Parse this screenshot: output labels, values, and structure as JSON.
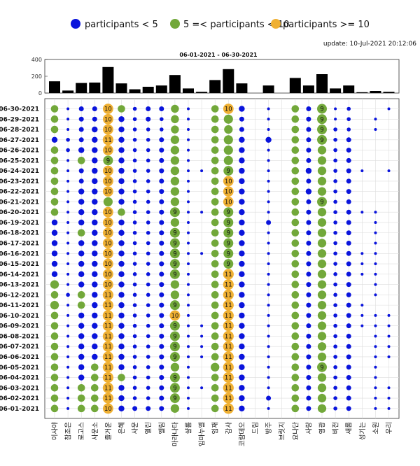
{
  "colors": {
    "blue": "#0a14dc",
    "green": "#72a83a",
    "orange": "#efb033",
    "bar": "#000000",
    "grid": "#dddddd"
  },
  "legend": {
    "small_label": "participants < 5",
    "mid_label": "5 =< participants < 10",
    "large_label": "participants >= 10"
  },
  "update_text": "update: 10-Jul-2021 20:12:06",
  "chart_data": {
    "type": "bubble-matrix-with-bar",
    "title": "06-01-2021   - 06-30-2021",
    "bar_ylim": [
      0,
      400
    ],
    "bar_yticks": [
      "0",
      "200",
      "400"
    ],
    "channels": [
      "이사야",
      "참조은",
      "로고스",
      "사운소",
      "즐거운",
      "은혜",
      "사운",
      "열린",
      "엘림",
      "마라나타",
      "샬롬",
      "임마누엘",
      "임재",
      "감사",
      "코람데오",
      "드림",
      "방주",
      "브릿지",
      "요나단",
      "사랑",
      "영광",
      "비전",
      "새롬",
      "성기는",
      "소원",
      "우리"
    ],
    "bar_values": [
      140,
      30,
      120,
      125,
      310,
      115,
      45,
      75,
      90,
      215,
      55,
      15,
      155,
      285,
      115,
      0,
      90,
      0,
      180,
      90,
      225,
      55,
      90,
      10,
      25,
      15
    ],
    "dates": [
      "06-30-2021",
      "06-29-2021",
      "06-28-2021",
      "06-27-2021",
      "06-26-2021",
      "06-25-2021",
      "06-24-2021",
      "06-23-2021",
      "06-22-2021",
      "06-21-2021",
      "06-20-2021",
      "06-19-2021",
      "06-18-2021",
      "06-17-2021",
      "06-16-2021",
      "06-15-2021",
      "06-14-2021",
      "06-13-2021",
      "06-12-2021",
      "06-11-2021",
      "06-10-2021",
      "06-09-2021",
      "06-08-2021",
      "06-07-2021",
      "06-06-2021",
      "06-05-2021",
      "06-04-2021",
      "06-03-2021",
      "06-02-2021",
      "06-01-2021"
    ],
    "values": [
      [
        5,
        1,
        3,
        3,
        10,
        5,
        2,
        3,
        3,
        6,
        1,
        0,
        5,
        10,
        4,
        0,
        1,
        0,
        5,
        3,
        9,
        1,
        2,
        0,
        0,
        1
      ],
      [
        5,
        1,
        3,
        3,
        10,
        4,
        2,
        3,
        2,
        6,
        1,
        0,
        5,
        8,
        3,
        0,
        1,
        0,
        5,
        3,
        9,
        1,
        2,
        0,
        1,
        0
      ],
      [
        5,
        1,
        3,
        4,
        10,
        4,
        2,
        2,
        2,
        6,
        1,
        0,
        5,
        7,
        3,
        0,
        1,
        0,
        5,
        3,
        9,
        2,
        2,
        0,
        1,
        0
      ],
      [
        4,
        2,
        3,
        4,
        11,
        4,
        2,
        2,
        3,
        7,
        1,
        0,
        5,
        8,
        4,
        0,
        4,
        0,
        5,
        3,
        9,
        2,
        3,
        0,
        0,
        0
      ],
      [
        5,
        2,
        4,
        4,
        10,
        4,
        2,
        2,
        3,
        7,
        1,
        0,
        5,
        8,
        4,
        0,
        1,
        0,
        5,
        3,
        7,
        2,
        3,
        0,
        0,
        0
      ],
      [
        5,
        1,
        5,
        4,
        9,
        4,
        2,
        2,
        3,
        7,
        1,
        0,
        5,
        8,
        4,
        0,
        1,
        0,
        5,
        3,
        7,
        2,
        3,
        0,
        0,
        0
      ],
      [
        5,
        1,
        3,
        4,
        10,
        4,
        2,
        2,
        3,
        7,
        1,
        1,
        5,
        9,
        4,
        0,
        1,
        0,
        5,
        4,
        7,
        2,
        3,
        1,
        0,
        1
      ],
      [
        5,
        1,
        3,
        4,
        10,
        4,
        2,
        2,
        3,
        7,
        1,
        0,
        5,
        10,
        4,
        0,
        1,
        0,
        5,
        3,
        7,
        2,
        3,
        0,
        0,
        0
      ],
      [
        5,
        1,
        4,
        4,
        10,
        4,
        2,
        2,
        3,
        7,
        1,
        0,
        5,
        10,
        4,
        0,
        1,
        0,
        5,
        4,
        7,
        2,
        3,
        0,
        0,
        0
      ],
      [
        5,
        1,
        4,
        4,
        8,
        4,
        2,
        2,
        3,
        7,
        1,
        0,
        5,
        10,
        4,
        0,
        1,
        0,
        5,
        3,
        9,
        2,
        3,
        0,
        0,
        0
      ],
      [
        5,
        1,
        4,
        4,
        10,
        5,
        2,
        2,
        3,
        9,
        1,
        1,
        5,
        9,
        4,
        0,
        1,
        0,
        5,
        3,
        7,
        2,
        3,
        1,
        1,
        0
      ],
      [
        4,
        1,
        4,
        4,
        10,
        4,
        2,
        2,
        3,
        7,
        1,
        0,
        5,
        9,
        4,
        0,
        3,
        0,
        5,
        3,
        7,
        2,
        3,
        0,
        1,
        0
      ],
      [
        4,
        1,
        5,
        4,
        10,
        4,
        2,
        2,
        3,
        9,
        1,
        0,
        5,
        9,
        4,
        0,
        1,
        0,
        5,
        3,
        7,
        2,
        3,
        0,
        1,
        0
      ],
      [
        4,
        1,
        4,
        4,
        10,
        4,
        2,
        2,
        3,
        9,
        1,
        0,
        5,
        9,
        4,
        0,
        1,
        0,
        5,
        3,
        7,
        2,
        3,
        0,
        1,
        0
      ],
      [
        4,
        1,
        4,
        4,
        10,
        4,
        2,
        2,
        3,
        9,
        1,
        1,
        5,
        9,
        4,
        0,
        1,
        0,
        5,
        3,
        7,
        2,
        3,
        1,
        1,
        0
      ],
      [
        4,
        1,
        4,
        4,
        10,
        4,
        2,
        2,
        3,
        9,
        1,
        0,
        5,
        9,
        4,
        0,
        1,
        0,
        5,
        3,
        7,
        2,
        3,
        1,
        1,
        0
      ],
      [
        4,
        1,
        4,
        4,
        10,
        4,
        2,
        2,
        3,
        9,
        1,
        0,
        5,
        11,
        4,
        0,
        1,
        0,
        5,
        3,
        7,
        2,
        3,
        1,
        1,
        0
      ],
      [
        7,
        1,
        4,
        4,
        10,
        4,
        2,
        2,
        3,
        7,
        1,
        0,
        5,
        11,
        4,
        0,
        1,
        0,
        5,
        3,
        7,
        2,
        3,
        0,
        1,
        0
      ],
      [
        5,
        2,
        5,
        4,
        11,
        4,
        2,
        2,
        3,
        7,
        1,
        0,
        5,
        11,
        4,
        0,
        1,
        0,
        5,
        3,
        7,
        2,
        3,
        0,
        1,
        0
      ],
      [
        7,
        1,
        5,
        4,
        11,
        4,
        2,
        2,
        3,
        9,
        1,
        0,
        5,
        11,
        4,
        0,
        1,
        0,
        5,
        3,
        7,
        2,
        3,
        1,
        0,
        0
      ],
      [
        5,
        1,
        4,
        4,
        11,
        4,
        2,
        2,
        3,
        10,
        1,
        0,
        5,
        11,
        4,
        0,
        1,
        0,
        5,
        3,
        7,
        2,
        3,
        1,
        1,
        1
      ],
      [
        5,
        1,
        4,
        4,
        11,
        4,
        2,
        2,
        3,
        9,
        1,
        1,
        5,
        11,
        4,
        0,
        1,
        0,
        5,
        3,
        7,
        2,
        3,
        1,
        1,
        1
      ],
      [
        5,
        1,
        4,
        4,
        11,
        4,
        2,
        2,
        3,
        9,
        1,
        1,
        5,
        11,
        4,
        0,
        1,
        0,
        5,
        3,
        7,
        2,
        3,
        0,
        1,
        1
      ],
      [
        5,
        1,
        4,
        4,
        11,
        4,
        2,
        2,
        3,
        9,
        1,
        1,
        5,
        11,
        4,
        0,
        1,
        0,
        5,
        3,
        7,
        2,
        3,
        0,
        1,
        1
      ],
      [
        5,
        1,
        4,
        4,
        11,
        4,
        2,
        2,
        3,
        9,
        1,
        1,
        5,
        11,
        4,
        0,
        1,
        0,
        5,
        3,
        7,
        2,
        3,
        0,
        1,
        1
      ],
      [
        5,
        1,
        4,
        5,
        11,
        4,
        2,
        2,
        3,
        7,
        1,
        0,
        7,
        11,
        4,
        0,
        1,
        0,
        5,
        3,
        9,
        2,
        3,
        0,
        1,
        0
      ],
      [
        5,
        1,
        4,
        5,
        11,
        5,
        2,
        2,
        3,
        9,
        1,
        0,
        5,
        11,
        4,
        0,
        1,
        0,
        5,
        3,
        7,
        2,
        3,
        0,
        1,
        0
      ],
      [
        5,
        1,
        5,
        5,
        11,
        4,
        2,
        2,
        3,
        9,
        1,
        1,
        5,
        11,
        4,
        0,
        1,
        0,
        5,
        3,
        7,
        2,
        3,
        0,
        1,
        1
      ],
      [
        5,
        1,
        5,
        5,
        11,
        4,
        2,
        2,
        3,
        9,
        1,
        0,
        5,
        11,
        4,
        0,
        3,
        0,
        5,
        3,
        7,
        2,
        3,
        0,
        1,
        1
      ],
      [
        5,
        1,
        5,
        5,
        10,
        4,
        3,
        3,
        3,
        7,
        1,
        0,
        5,
        11,
        4,
        0,
        1,
        0,
        5,
        3,
        7,
        2,
        3,
        0,
        1,
        1
      ]
    ]
  }
}
